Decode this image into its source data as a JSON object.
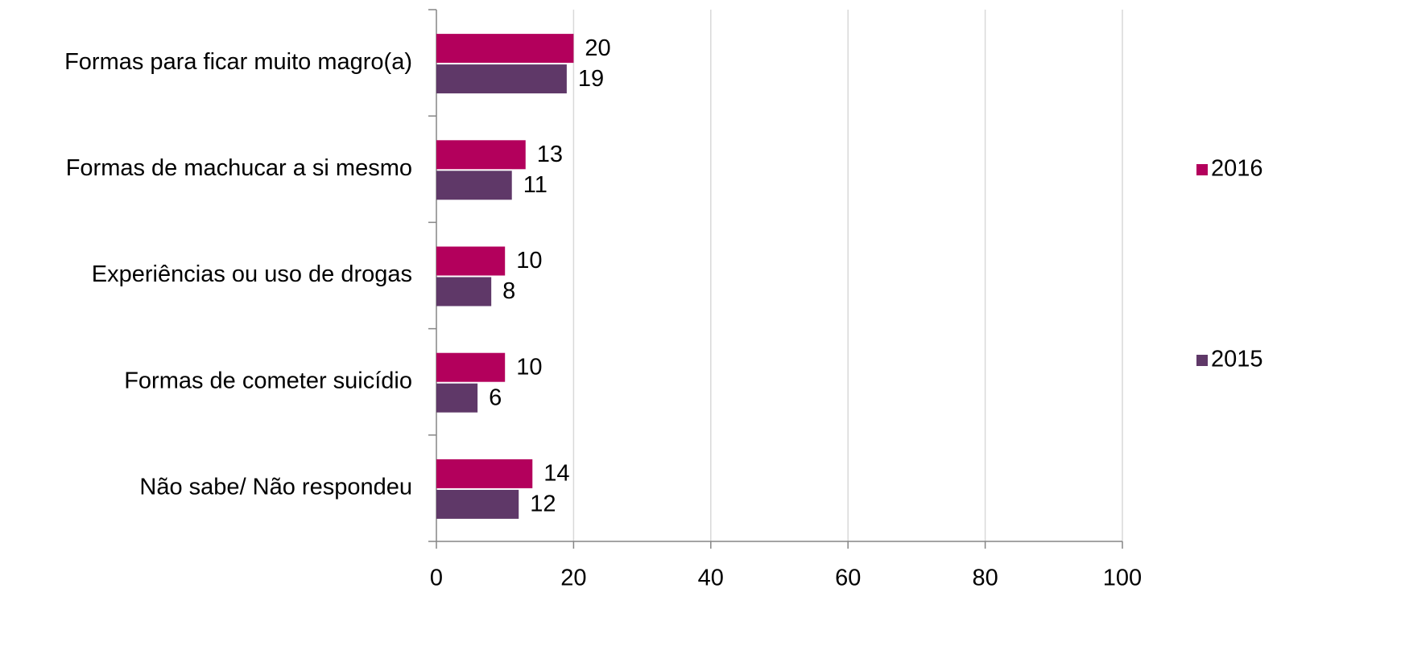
{
  "chart_data": {
    "type": "barh",
    "categories": [
      "Formas para ficar muito magro(a)",
      "Formas de machucar a si mesmo",
      "Experiências ou uso de drogas",
      "Formas de cometer suicídio",
      "Não sabe/ Não respondeu"
    ],
    "series": [
      {
        "name": "2016",
        "color": "#b3005c",
        "values": [
          20,
          13,
          10,
          10,
          14
        ]
      },
      {
        "name": "2015",
        "color": "#5f3868",
        "values": [
          19,
          11,
          8,
          6,
          12
        ]
      }
    ],
    "xlim": [
      0,
      100
    ],
    "xticks": [
      0,
      20,
      40,
      60,
      80,
      100
    ],
    "grid": true,
    "legend": "right"
  }
}
